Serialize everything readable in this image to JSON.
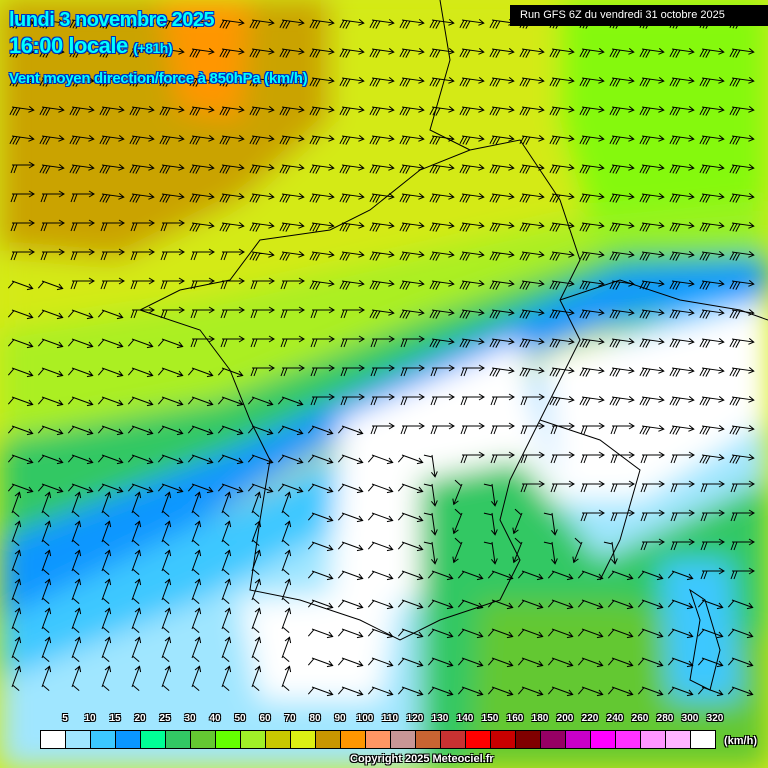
{
  "header": {
    "date": "lundi 3 novembre 2025",
    "time": "16:00 locale",
    "lead": "(+81h)",
    "parameter": "Vent moyen direction/force à 850hPa (km/h)",
    "run": "Run GFS 6Z du vendredi 31 octobre 2025"
  },
  "legend": {
    "unit": "(km/h)",
    "labels": [
      "5",
      "10",
      "15",
      "20",
      "25",
      "30",
      "40",
      "50",
      "60",
      "70",
      "80",
      "90",
      "100",
      "110",
      "120",
      "130",
      "140",
      "150",
      "160",
      "180",
      "200",
      "220",
      "240",
      "260",
      "280",
      "300",
      "320"
    ],
    "colors": [
      "#ffffff",
      "#a0e6ff",
      "#3cc8ff",
      "#0a96ff",
      "#00ff96",
      "#32c864",
      "#64c832",
      "#64ff00",
      "#a0f028",
      "#c8c800",
      "#dcf014",
      "#c89600",
      "#ff9600",
      "#ff9664",
      "#c89696",
      "#c86432",
      "#c83232",
      "#ff0000",
      "#c80000",
      "#800000",
      "#960064",
      "#c800c8",
      "#ff00ff",
      "#ff32ff",
      "#ff96ff",
      "#ffb4ff",
      "#ffffff"
    ]
  },
  "footer": {
    "copyright": "Copyright 2025 Meteociel.fr"
  }
}
